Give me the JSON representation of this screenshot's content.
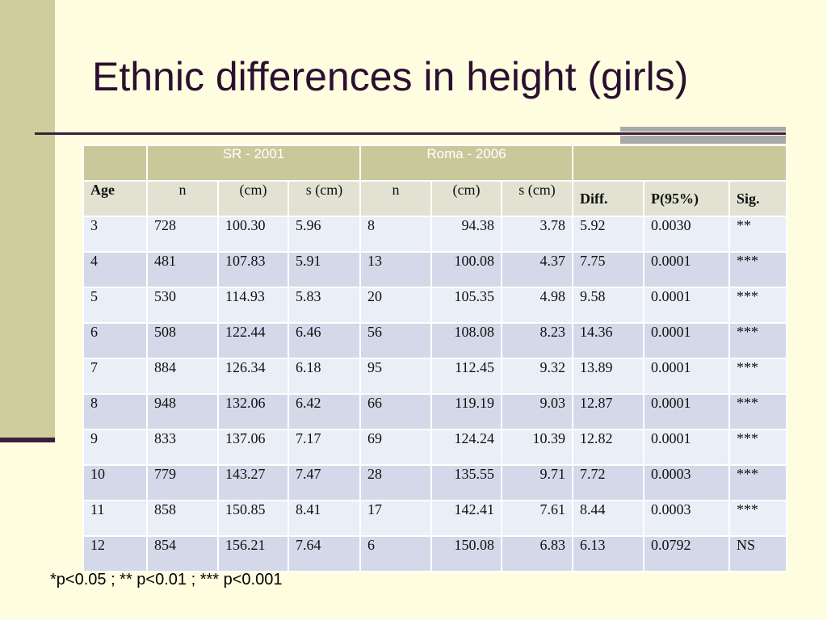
{
  "title": "Ethnic differences in height (girls)",
  "groups": {
    "sr": "SR - 2001",
    "roma": "Roma - 2006"
  },
  "headers": [
    "Age",
    "n",
    "(cm)",
    "s (cm)",
    "n",
    "(cm)",
    "s (cm)",
    "Diff.",
    "P(95%)",
    "Sig."
  ],
  "rows": [
    [
      "3",
      "728",
      "100.30",
      "5.96",
      "8",
      "94.38",
      "3.78",
      "5.92",
      "0.0030",
      "**"
    ],
    [
      "4",
      "481",
      "107.83",
      "5.91",
      "13",
      "100.08",
      "4.37",
      "7.75",
      "0.0001",
      "***"
    ],
    [
      "5",
      "530",
      "114.93",
      "5.83",
      "20",
      "105.35",
      "4.98",
      "9.58",
      "0.0001",
      "***"
    ],
    [
      "6",
      "508",
      "122.44",
      "6.46",
      "56",
      "108.08",
      "8.23",
      "14.36",
      "0.0001",
      "***"
    ],
    [
      "7",
      "884",
      "126.34",
      "6.18",
      "95",
      "112.45",
      "9.32",
      "13.89",
      "0.0001",
      "***"
    ],
    [
      "8",
      "948",
      "132.06",
      "6.42",
      "66",
      "119.19",
      "9.03",
      "12.87",
      "0.0001",
      "***"
    ],
    [
      "9",
      "833",
      "137.06",
      "7.17",
      "69",
      "124.24",
      "10.39",
      "12.82",
      "0.0001",
      "***"
    ],
    [
      "10",
      "779",
      "143.27",
      "7.47",
      "28",
      "135.55",
      "9.71",
      "7.72",
      "0.0003",
      "***"
    ],
    [
      "11",
      "858",
      "150.85",
      "8.41",
      "17",
      "142.41",
      "7.61",
      "8.44",
      "0.0003",
      "***"
    ],
    [
      "12",
      "854",
      "156.21",
      "7.64",
      "6",
      "150.08",
      "6.83",
      "6.13",
      "0.0792",
      "NS"
    ]
  ],
  "footnote": "*p<0.05 ; ** p<0.01 ; *** p<0.001",
  "colors": {
    "background": "#fffde0",
    "band": "#cfcd9b",
    "accent": "#3a1e3a",
    "group_header": "#c9c89a"
  }
}
